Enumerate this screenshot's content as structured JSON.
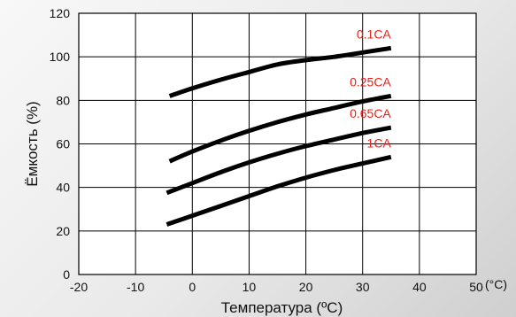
{
  "chart_data": {
    "type": "line",
    "xlabel": "Температура (ºC)",
    "ylabel": "Ёмкость (%)",
    "x_unit": "(°C)",
    "xlim": [
      -20,
      50
    ],
    "ylim": [
      0,
      120
    ],
    "x_ticks": [
      "-20",
      "-10",
      "0",
      "10",
      "20",
      "30",
      "40",
      "50"
    ],
    "y_ticks": [
      "0",
      "20",
      "40",
      "60",
      "80",
      "100",
      "120"
    ],
    "grid": true,
    "series": [
      {
        "name": "0.1CA",
        "x": [
          -4,
          0,
          5,
          10,
          15,
          20,
          25,
          30,
          35
        ],
        "y": [
          82,
          85.5,
          89.5,
          93,
          96.5,
          98.5,
          100,
          102,
          104
        ]
      },
      {
        "name": "0.25CA",
        "x": [
          -4,
          0,
          5,
          10,
          15,
          20,
          25,
          30,
          35
        ],
        "y": [
          52,
          56.5,
          61.5,
          66,
          70,
          73.5,
          76.5,
          79.5,
          82
        ]
      },
      {
        "name": "0.65CA",
        "x": [
          -4.5,
          0,
          5,
          10,
          15,
          20,
          25,
          30,
          35
        ],
        "y": [
          37.5,
          42,
          47,
          51.5,
          55.5,
          59,
          62,
          65,
          67.5
        ]
      },
      {
        "name": "1CA",
        "x": [
          -4.5,
          0,
          5,
          10,
          15,
          20,
          25,
          30,
          35
        ],
        "y": [
          23,
          27,
          31.5,
          36,
          40.5,
          44.5,
          48,
          51,
          54
        ]
      }
    ],
    "label_color": "#e0241c",
    "line_color": "#000000",
    "grid_color": "#000000",
    "plot_background": "#ffffff"
  }
}
